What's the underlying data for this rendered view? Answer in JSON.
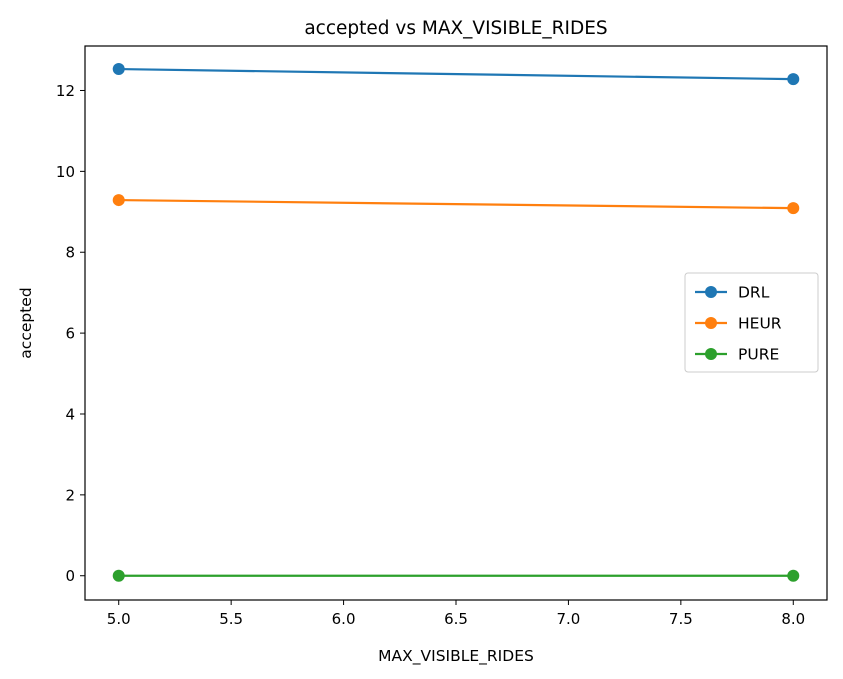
{
  "chart_data": {
    "type": "line",
    "title": "accepted vs MAX_VISIBLE_RIDES",
    "xlabel": "MAX_VISIBLE_RIDES",
    "ylabel": "accepted",
    "x": [
      5.0,
      8.0
    ],
    "xlim": [
      4.85,
      8.15
    ],
    "ylim": [
      -0.6,
      13.1
    ],
    "xticks": [
      "5.0",
      "5.5",
      "6.0",
      "6.5",
      "7.0",
      "7.5",
      "8.0"
    ],
    "yticks": [
      "0",
      "2",
      "4",
      "6",
      "8",
      "10",
      "12"
    ],
    "grid": false,
    "legend_position": "center-right",
    "series": [
      {
        "name": "DRL",
        "values": [
          12.53,
          12.28
        ],
        "color": "#1f77b4"
      },
      {
        "name": "HEUR",
        "values": [
          9.29,
          9.09
        ],
        "color": "#ff7f0e"
      },
      {
        "name": "PURE",
        "values": [
          0.0,
          0.0
        ],
        "color": "#2ca02c"
      }
    ]
  }
}
